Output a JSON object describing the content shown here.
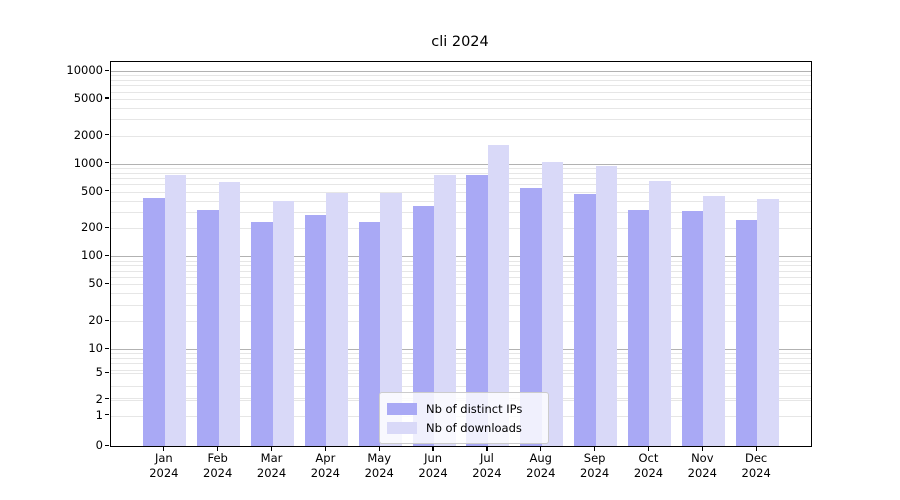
{
  "figure": {
    "title": "cli 2024",
    "background": "#ffffff"
  },
  "legend": {
    "position": "lower center",
    "items": [
      {
        "label": "Nb of distinct IPs",
        "color": "#a9a9f5"
      },
      {
        "label": "Nb of downloads",
        "color": "#d9d9f8"
      }
    ]
  },
  "chart_data": {
    "type": "bar",
    "title": "cli 2024",
    "categories": [
      "Jan",
      "Feb",
      "Mar",
      "Apr",
      "May",
      "Jun",
      "Jul",
      "Aug",
      "Sep",
      "Oct",
      "Nov",
      "Dec"
    ],
    "category_year": "2024",
    "series": [
      {
        "name": "Nb of distinct IPs",
        "color": "#a9a9f5",
        "values": [
          425,
          320,
          237,
          278,
          235,
          350,
          750,
          545,
          475,
          318,
          310,
          245
        ]
      },
      {
        "name": "Nb of downloads",
        "color": "#d9d9f8",
        "values": [
          760,
          640,
          396,
          483,
          487,
          752,
          1600,
          1050,
          950,
          651,
          452,
          416
        ]
      }
    ],
    "yscale": "symlog",
    "ylim": [
      0,
      10000
    ],
    "yticks": [
      10000,
      5000,
      2000,
      1000,
      500,
      200,
      100,
      50,
      20,
      10,
      5,
      2,
      1,
      0
    ],
    "grid": true,
    "grid_major_color": "#b2b2b2",
    "grid_minor_color": "#e6e6e6",
    "legend_position": "lower center"
  }
}
